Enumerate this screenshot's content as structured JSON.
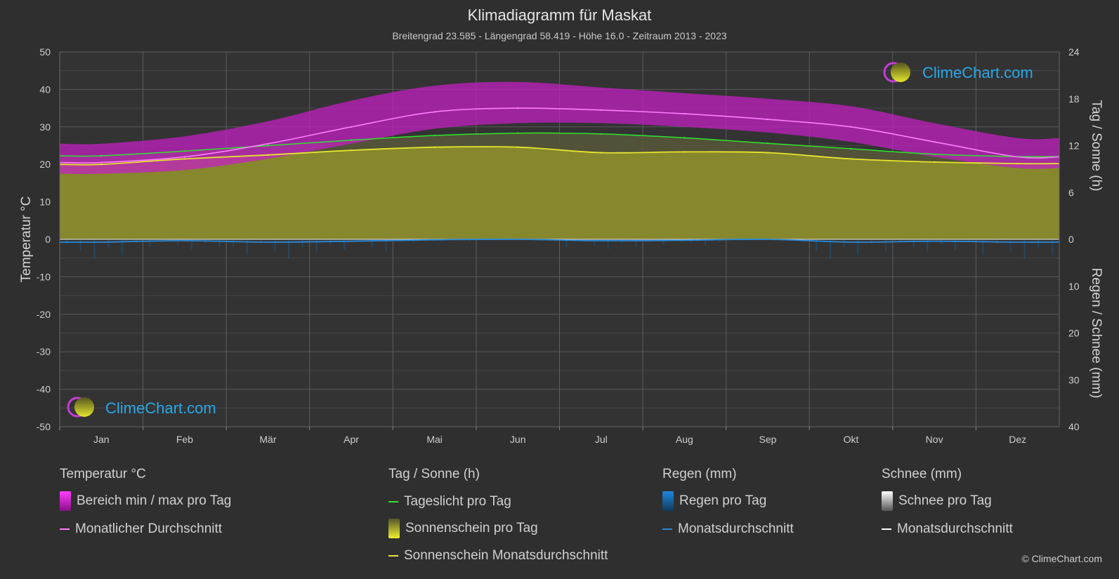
{
  "title": "Klimadiagramm für Maskat",
  "subtitle": "Breitengrad 23.585 - Längengrad 58.419 - Höhe 16.0 - Zeitraum 2013 - 2023",
  "brand": "ClimeChart.com",
  "copyright": "© ClimeChart.com",
  "colors": {
    "background": "#2f2f2f",
    "temp_range": "#d21ed2",
    "temp_avg": "#ff7dff",
    "daylight": "#2ee62e",
    "sunshine_fill": "#8c8c2d",
    "sunshine_avg": "#e6e62e",
    "rain": "#1e78c8",
    "brand": "#29a8e8"
  },
  "legend": {
    "groups": [
      {
        "header": "Temperatur °C",
        "items": [
          {
            "label": "Bereich min / max pro Tag",
            "swatch": "box",
            "color": "#d21ed2"
          },
          {
            "label": "Monatlicher Durchschnitt",
            "swatch": "line",
            "color": "#ff7dff"
          }
        ]
      },
      {
        "header": "Tag / Sonne (h)",
        "items": [
          {
            "label": "Tageslicht pro Tag",
            "swatch": "line",
            "color": "#2ee62e"
          },
          {
            "label": "Sonnenschein pro Tag",
            "swatch": "box",
            "color": "#b5b52a"
          },
          {
            "label": "Sonnenschein Monatsdurchschnitt",
            "swatch": "line",
            "color": "#e6e62e"
          }
        ]
      },
      {
        "header": "Regen (mm)",
        "items": [
          {
            "label": "Regen pro Tag",
            "swatch": "box",
            "color": "#1e78c8"
          },
          {
            "label": "Monatsdurchschnitt",
            "swatch": "line",
            "color": "#2a8ad8"
          }
        ]
      },
      {
        "header": "Schnee (mm)",
        "items": [
          {
            "label": "Schnee pro Tag",
            "swatch": "box",
            "color": "#dddddd"
          },
          {
            "label": "Monatsdurchschnitt",
            "swatch": "line",
            "color": "#ffffff"
          }
        ]
      }
    ]
  },
  "chart_data": {
    "type": "line",
    "title": "Klimadiagramm für Maskat",
    "subtitle": "Breitengrad 23.585 - Längengrad 58.419 - Höhe 16.0 - Zeitraum 2013 - 2023",
    "categories": [
      "Jan",
      "Feb",
      "Mär",
      "Apr",
      "Mai",
      "Jun",
      "Jul",
      "Aug",
      "Sep",
      "Okt",
      "Nov",
      "Dez"
    ],
    "y_left": {
      "label": "Temperatur °C",
      "range": [
        -50,
        50
      ],
      "ticks": [
        "50",
        "40",
        "30",
        "20",
        "10",
        "0",
        "-10",
        "-20",
        "-30",
        "-40",
        "-50"
      ]
    },
    "y_right_top": {
      "label": "Tag / Sonne (h)",
      "range": [
        0,
        24
      ],
      "ticks": [
        "24",
        "18",
        "12",
        "6",
        "0"
      ]
    },
    "y_right_bottom": {
      "label": "Regen / Schnee (mm)",
      "range": [
        0,
        40
      ],
      "ticks": [
        "10",
        "20",
        "30",
        "40"
      ]
    },
    "grid": true,
    "series": [
      {
        "name": "Monatlicher Durchschnitt",
        "unit": "°C",
        "values": [
          20.5,
          22.0,
          25.5,
          30.0,
          34.0,
          35.0,
          34.5,
          33.5,
          32.0,
          30.0,
          26.0,
          22.0
        ]
      },
      {
        "name": "Bereich min / max pro Tag (max)",
        "unit": "°C",
        "values": [
          25.5,
          27.5,
          31.5,
          37.0,
          41.0,
          42.0,
          40.5,
          39.0,
          37.5,
          35.5,
          31.0,
          27.0
        ]
      },
      {
        "name": "Bereich min / max pro Tag (min)",
        "unit": "°C",
        "values": [
          17.5,
          18.5,
          21.5,
          25.5,
          29.5,
          31.0,
          31.0,
          30.0,
          28.5,
          26.0,
          22.0,
          19.0
        ]
      },
      {
        "name": "Tageslicht pro Tag",
        "unit": "h",
        "values": [
          10.7,
          11.3,
          12.0,
          12.7,
          13.3,
          13.6,
          13.5,
          13.0,
          12.3,
          11.6,
          10.9,
          10.6
        ]
      },
      {
        "name": "Sonnenschein Monatsdurchschnitt",
        "unit": "h",
        "values": [
          9.6,
          10.3,
          10.8,
          11.4,
          11.8,
          11.8,
          11.1,
          11.2,
          11.1,
          10.3,
          9.9,
          9.7
        ]
      },
      {
        "name": "Regen Monatsdurchschnitt",
        "unit": "mm",
        "values": [
          0.6,
          0.3,
          0.6,
          0.4,
          0.1,
          0.0,
          0.3,
          0.2,
          0.0,
          0.6,
          0.4,
          0.6
        ]
      }
    ]
  }
}
